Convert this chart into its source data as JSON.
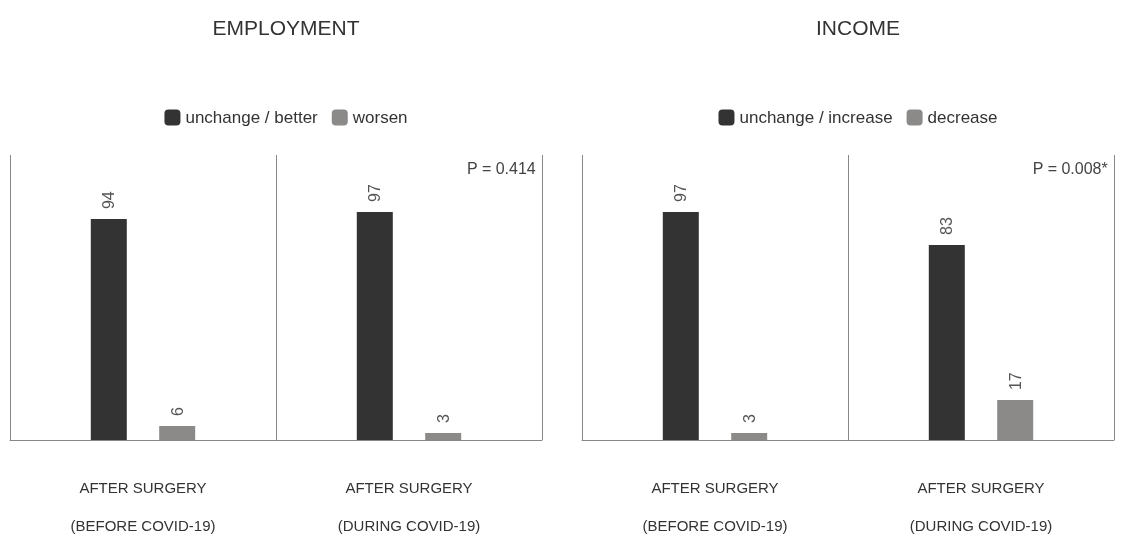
{
  "chart_data": [
    {
      "type": "bar",
      "title": "EMPLOYMENT",
      "categories": [
        "AFTER SURGERY\n(BEFORE COVID-19)",
        "AFTER SURGERY\n(DURING COVID-19)"
      ],
      "series": [
        {
          "name": "unchange / better",
          "color": "#333333",
          "values": [
            94,
            97
          ]
        },
        {
          "name": "worsen",
          "color": "#8c8a89",
          "values": [
            6,
            3
          ]
        }
      ],
      "data_labels": true,
      "legend": "top",
      "grid": "x",
      "tick_labels": "x",
      "annotations": [
        "P = 0.414"
      ]
    },
    {
      "type": "bar",
      "title": "INCOME",
      "categories": [
        "AFTER SURGERY\n(BEFORE COVID-19)",
        "AFTER SURGERY\n(DURING COVID-19)"
      ],
      "series": [
        {
          "name": "unchange / increase",
          "color": "#333333",
          "values": [
            97,
            83
          ]
        },
        {
          "name": "decrease",
          "color": "#8c8a89",
          "values": [
            3,
            17
          ]
        }
      ],
      "data_labels": true,
      "legend": "top",
      "grid": "x",
      "tick_labels": "x",
      "annotations": [
        "P = 0.008*"
      ]
    }
  ]
}
